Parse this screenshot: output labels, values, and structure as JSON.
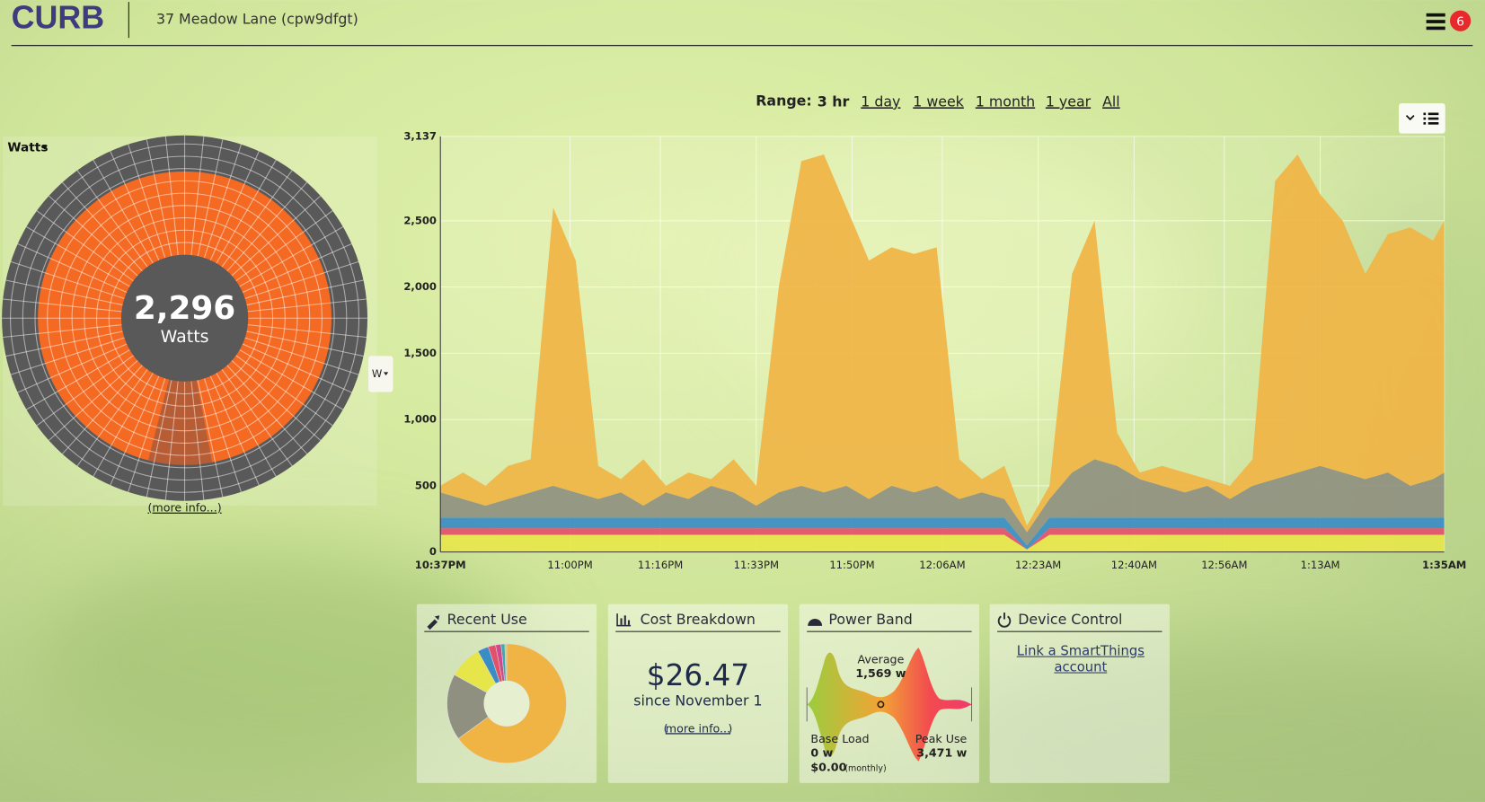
{
  "header": {
    "logo": "CURB",
    "address": "37 Meadow Lane (cpw9dfgt)",
    "notifications": "6"
  },
  "range": {
    "label": "Range:",
    "options": [
      "3 hr",
      "1 day",
      "1 week",
      "1 month",
      "1 year",
      "All"
    ]
  },
  "gauge": {
    "unit_menu": "Watts",
    "value": "2,296",
    "unit": "Watts",
    "more_info": "(more info...)",
    "unit_button": "W"
  },
  "chart_data": {
    "type": "stacked-area",
    "x": [
      "10:37PM",
      "10:41PM",
      "10:45PM",
      "10:49PM",
      "10:53PM",
      "10:57PM",
      "11:01PM",
      "11:05PM",
      "11:09PM",
      "11:13PM",
      "11:17PM",
      "11:21PM",
      "11:25PM",
      "11:29PM",
      "11:33PM",
      "11:37PM",
      "11:41PM",
      "11:45PM",
      "11:49PM",
      "11:53PM",
      "11:57PM",
      "12:01AM",
      "12:05AM",
      "12:09AM",
      "12:13AM",
      "12:17AM",
      "12:21AM",
      "12:25AM",
      "12:29AM",
      "12:33AM",
      "12:37AM",
      "12:41AM",
      "12:45AM",
      "12:49AM",
      "12:53AM",
      "12:57AM",
      "1:01AM",
      "1:05AM",
      "1:09AM",
      "1:13AM",
      "1:17AM",
      "1:21AM",
      "1:25AM",
      "1:29AM",
      "1:33AM",
      "1:35AM"
    ],
    "series": [
      {
        "color": "#e6e64a",
        "values": [
          130,
          130,
          130,
          130,
          130,
          130,
          130,
          130,
          130,
          130,
          130,
          130,
          130,
          130,
          130,
          130,
          130,
          130,
          130,
          130,
          130,
          130,
          130,
          130,
          130,
          130,
          20,
          130,
          130,
          130,
          130,
          130,
          130,
          130,
          130,
          130,
          130,
          130,
          130,
          130,
          130,
          130,
          130,
          130,
          130,
          130
        ]
      },
      {
        "color": "#e2506a",
        "values": [
          50,
          50,
          50,
          50,
          50,
          50,
          50,
          50,
          50,
          50,
          50,
          50,
          50,
          50,
          50,
          50,
          50,
          50,
          50,
          50,
          50,
          50,
          50,
          50,
          50,
          50,
          0,
          50,
          50,
          50,
          50,
          50,
          50,
          50,
          50,
          50,
          50,
          50,
          50,
          50,
          50,
          50,
          50,
          50,
          50,
          50
        ]
      },
      {
        "color": "#3a8cc4",
        "values": [
          80,
          80,
          80,
          80,
          80,
          80,
          80,
          80,
          80,
          80,
          80,
          80,
          80,
          80,
          80,
          80,
          80,
          80,
          80,
          80,
          80,
          80,
          80,
          80,
          80,
          80,
          30,
          80,
          80,
          80,
          80,
          80,
          80,
          80,
          80,
          80,
          80,
          80,
          80,
          80,
          80,
          80,
          80,
          80,
          80,
          80
        ]
      },
      {
        "color": "#8f9080",
        "values": [
          190,
          140,
          90,
          140,
          190,
          240,
          190,
          140,
          190,
          90,
          190,
          140,
          240,
          190,
          90,
          190,
          240,
          190,
          240,
          140,
          240,
          190,
          240,
          140,
          190,
          140,
          100,
          140,
          340,
          440,
          390,
          290,
          240,
          190,
          240,
          140,
          240,
          290,
          340,
          390,
          340,
          290,
          340,
          240,
          290,
          340
        ]
      },
      {
        "color": "#f0b445",
        "values": [
          50,
          200,
          150,
          250,
          250,
          2100,
          1750,
          250,
          100,
          350,
          50,
          200,
          50,
          250,
          150,
          1550,
          2450,
          2550,
          2100,
          1800,
          1800,
          1800,
          1800,
          300,
          100,
          250,
          50,
          100,
          1500,
          1800,
          250,
          50,
          150,
          150,
          50,
          100,
          200,
          2250,
          2400,
          2050,
          1900,
          1550,
          1800,
          1950,
          1800,
          1900
        ]
      }
    ],
    "xlim": [
      "10:37PM",
      "1:35AM"
    ],
    "xticks": [
      "10:37PM",
      "11:00PM",
      "11:16PM",
      "11:33PM",
      "11:50PM",
      "12:06AM",
      "12:23AM",
      "12:40AM",
      "12:56AM",
      "1:13AM",
      "1:35AM"
    ],
    "ylim": [
      0,
      3137
    ],
    "yticks": [
      0,
      500,
      {
        "value": 1000,
        "label": "1,000"
      },
      {
        "value": 1500,
        "label": "1,500"
      },
      {
        "value": 2000,
        "label": "2,000"
      },
      {
        "value": 2500,
        "label": "2,500"
      },
      {
        "value": 3137,
        "label": "3,137"
      }
    ],
    "grid": true
  },
  "cards": {
    "recent_use": {
      "title": "Recent Use",
      "pie": {
        "values": [
          65,
          18,
          9,
          3,
          2,
          1.5,
          1,
          0.5
        ],
        "colors": [
          "#f0b445",
          "#8f9080",
          "#e6e64a",
          "#3a8cc4",
          "#e2506a",
          "#d04a8a",
          "#3aa8b8",
          "#a8d878"
        ]
      }
    },
    "cost": {
      "title": "Cost Breakdown",
      "amount": "$26.47",
      "since": "since November 1",
      "open": "(",
      "more_info": "more info...",
      "close": ")"
    },
    "power_band": {
      "title": "Power Band",
      "average_label": "Average",
      "average": "1,569 w",
      "base_label": "Base Load",
      "base": "0 w",
      "base_cost": "$0.00",
      "base_cost_period": "(monthly)",
      "peak_label": "Peak Use",
      "peak": "3,471 w"
    },
    "device_control": {
      "title": "Device Control",
      "link": "Link a SmartThings account"
    }
  }
}
